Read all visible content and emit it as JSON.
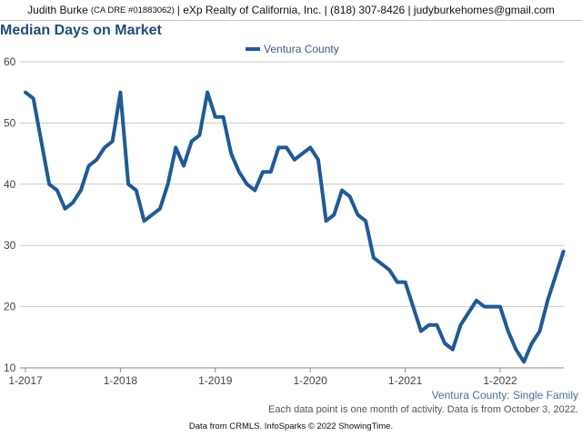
{
  "header": {
    "agent_name": "Judith Burke",
    "license": "(CA DRE #01883062)",
    "details": "| eXp Realty of California, Inc. | (818) 307-8426 | judyburkehomes@gmail.com"
  },
  "footer": {
    "region_label": "Ventura County: Single Family",
    "note": "Each data point is one month of activity. Data is from October 3, 2022.",
    "source": "Data from CRMLS. InfoSparks © 2022 ShowingTime."
  },
  "colors": {
    "series": "#1f5a96",
    "grid": "#c9c9c9",
    "title": "#1f4e79"
  },
  "chart_data": {
    "type": "line",
    "title": "Median Days on Market",
    "legend_position": "top",
    "grid": true,
    "ylim": [
      10,
      60
    ],
    "yticks": [
      10,
      20,
      30,
      40,
      50,
      60
    ],
    "xticks": [
      "1-2017",
      "1-2018",
      "1-2019",
      "1-2020",
      "1-2021",
      "1-2022"
    ],
    "x": [
      "1-2017",
      "2-2017",
      "3-2017",
      "4-2017",
      "5-2017",
      "6-2017",
      "7-2017",
      "8-2017",
      "9-2017",
      "10-2017",
      "11-2017",
      "12-2017",
      "1-2018",
      "2-2018",
      "3-2018",
      "4-2018",
      "5-2018",
      "6-2018",
      "7-2018",
      "8-2018",
      "9-2018",
      "10-2018",
      "11-2018",
      "12-2018",
      "1-2019",
      "2-2019",
      "3-2019",
      "4-2019",
      "5-2019",
      "6-2019",
      "7-2019",
      "8-2019",
      "9-2019",
      "10-2019",
      "11-2019",
      "12-2019",
      "1-2020",
      "2-2020",
      "3-2020",
      "4-2020",
      "5-2020",
      "6-2020",
      "7-2020",
      "8-2020",
      "9-2020",
      "10-2020",
      "11-2020",
      "12-2020",
      "1-2021",
      "2-2021",
      "3-2021",
      "4-2021",
      "5-2021",
      "6-2021",
      "7-2021",
      "8-2021",
      "9-2021",
      "10-2021",
      "11-2021",
      "12-2021",
      "1-2022",
      "2-2022",
      "3-2022",
      "4-2022",
      "5-2022",
      "6-2022",
      "7-2022",
      "8-2022",
      "9-2022"
    ],
    "series": [
      {
        "name": "Ventura County",
        "values": [
          55,
          54,
          47,
          40,
          39,
          36,
          37,
          39,
          43,
          44,
          46,
          47,
          55,
          40,
          39,
          34,
          35,
          36,
          40,
          46,
          43,
          47,
          48,
          55,
          51,
          51,
          45,
          42,
          40,
          39,
          42,
          42,
          46,
          46,
          44,
          45,
          46,
          44,
          34,
          35,
          39,
          38,
          35,
          34,
          28,
          27,
          26,
          24,
          24,
          20,
          16,
          17,
          17,
          14,
          13,
          17,
          19,
          21,
          20,
          20,
          20,
          16,
          13,
          11,
          14,
          16,
          21,
          25,
          29
        ]
      }
    ]
  }
}
